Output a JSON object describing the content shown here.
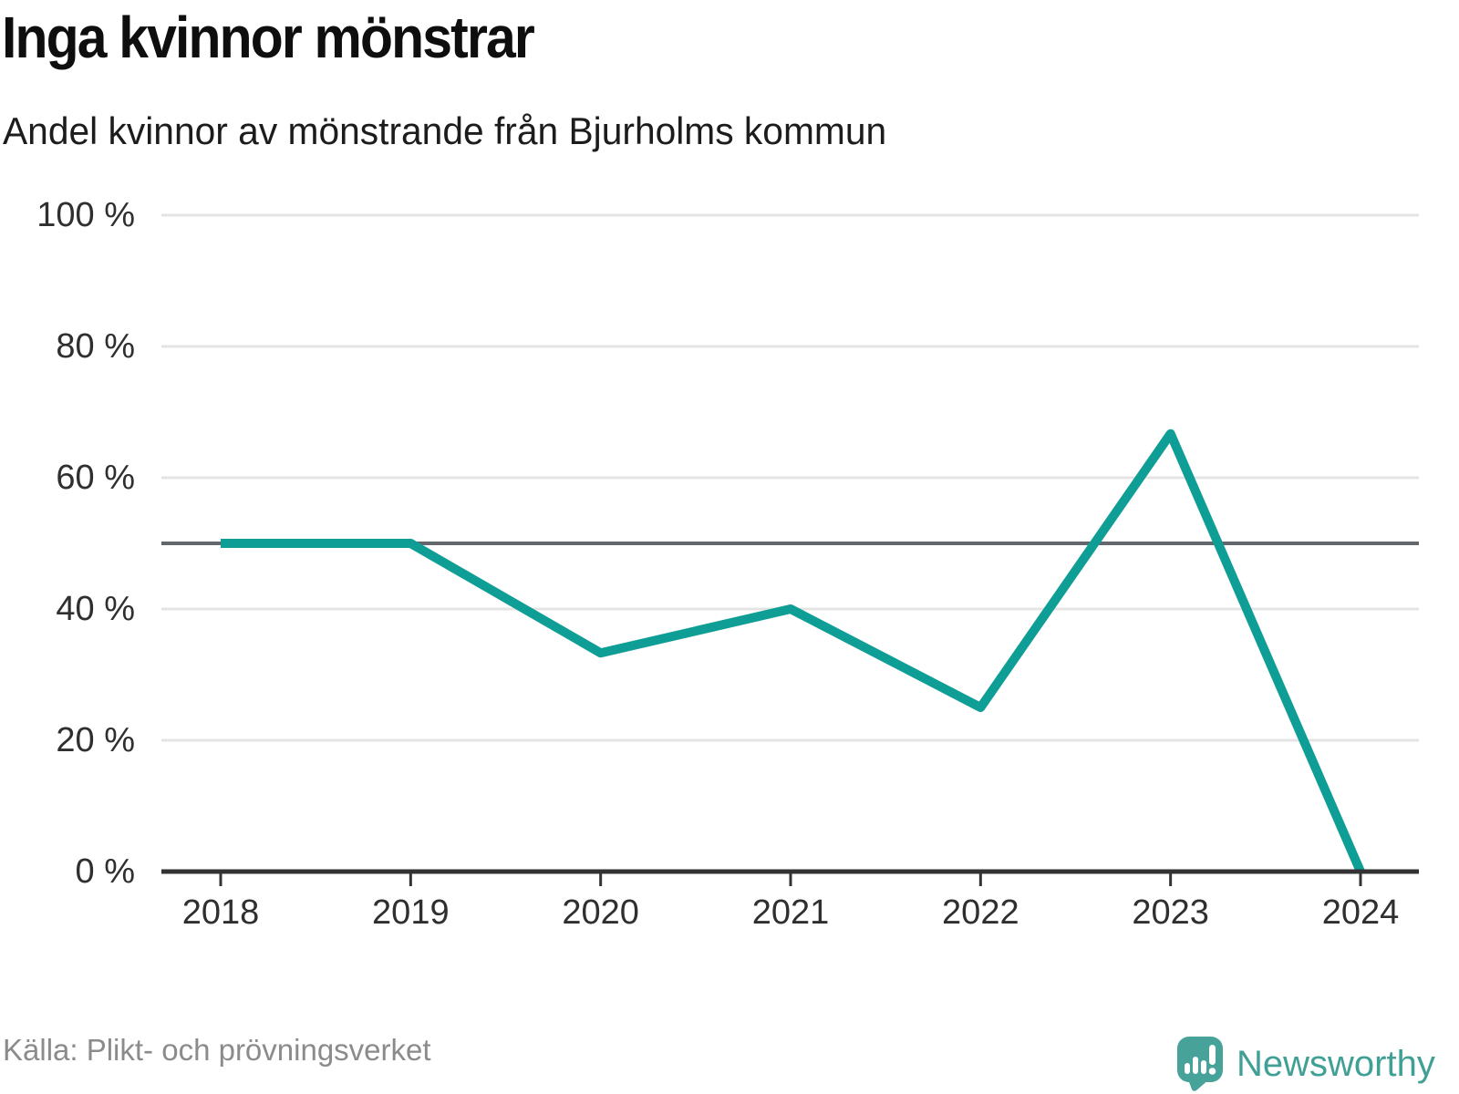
{
  "header": {
    "title": "Inga kvinnor mönstrar",
    "subtitle": "Andel kvinnor av mönstrande från Bjurholms kommun"
  },
  "chart_data": {
    "type": "line",
    "title": "Inga kvinnor mönstrar",
    "subtitle": "Andel kvinnor av mönstrande från Bjurholms kommun",
    "categories": [
      "2018",
      "2019",
      "2020",
      "2021",
      "2022",
      "2023",
      "2024"
    ],
    "series": [
      {
        "name": "Andel kvinnor av mönstrande",
        "values": [
          50,
          50,
          33.3,
          40,
          25,
          66.7,
          0
        ]
      }
    ],
    "ylim": [
      0,
      100
    ],
    "y_ticks": [
      {
        "value": 0,
        "label": "0 %"
      },
      {
        "value": 20,
        "label": "20 %"
      },
      {
        "value": 40,
        "label": "40 %"
      },
      {
        "value": 60,
        "label": "60 %"
      },
      {
        "value": 80,
        "label": "80 %"
      },
      {
        "value": 100,
        "label": "100 %"
      }
    ],
    "reference_line": {
      "value": 50
    },
    "grid": "horizontal",
    "legend": "none",
    "colors": {
      "line": "#0f9e95",
      "reference_line": "#63666a",
      "axis": "#333333",
      "gridline": "#e4e4e4"
    }
  },
  "footer": {
    "source": "Källa: Plikt- och prövningsverket",
    "brand": "Newsworthy",
    "brand_color": "#41a096"
  }
}
